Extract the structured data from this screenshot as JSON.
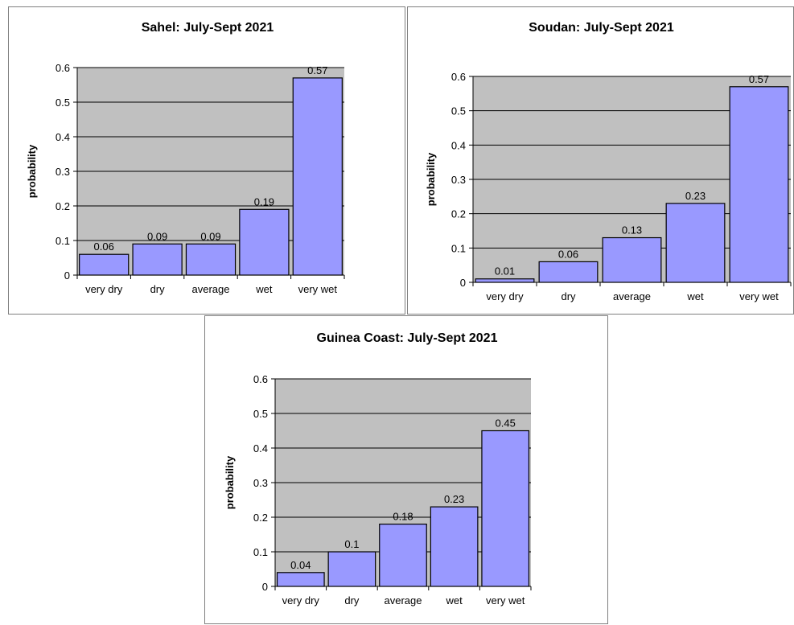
{
  "chart_data": [
    {
      "type": "bar",
      "title": "Sahel: July-Sept 2021",
      "ylabel": "probability",
      "xlabel": "",
      "categories": [
        "very dry",
        "dry",
        "average",
        "wet",
        "very wet"
      ],
      "values": [
        0.06,
        0.09,
        0.09,
        0.19,
        0.57
      ],
      "data_labels": [
        "0.06",
        "0.09",
        "0.09",
        "0.19",
        "0.57"
      ],
      "ylim": [
        0,
        0.6
      ],
      "yticks": [
        "0",
        "0.1",
        "0.2",
        "0.3",
        "0.4",
        "0.5",
        "0.6"
      ],
      "grid": true,
      "legend": "none"
    },
    {
      "type": "bar",
      "title": "Soudan: July-Sept 2021",
      "ylabel": "probability",
      "xlabel": "",
      "categories": [
        "very dry",
        "dry",
        "average",
        "wet",
        "very wet"
      ],
      "values": [
        0.01,
        0.06,
        0.13,
        0.23,
        0.57
      ],
      "data_labels": [
        "0.01",
        "0.06",
        "0.13",
        "0.23",
        "0.57"
      ],
      "ylim": [
        0,
        0.6
      ],
      "yticks": [
        "0",
        "0.1",
        "0.2",
        "0.3",
        "0.4",
        "0.5",
        "0.6"
      ],
      "grid": true,
      "legend": "none"
    },
    {
      "type": "bar",
      "title": "Guinea Coast: July-Sept 2021",
      "ylabel": "probability",
      "xlabel": "",
      "categories": [
        "very dry",
        "dry",
        "average",
        "wet",
        "very wet"
      ],
      "values": [
        0.04,
        0.1,
        0.18,
        0.23,
        0.45
      ],
      "data_labels": [
        "0.04",
        "0.1",
        "0.18",
        "0.23",
        "0.45"
      ],
      "ylim": [
        0,
        0.6
      ],
      "yticks": [
        "0",
        "0.1",
        "0.2",
        "0.3",
        "0.4",
        "0.5",
        "0.6"
      ],
      "grid": true,
      "legend": "none"
    }
  ],
  "colors": {
    "bar_fill": "#9999ff",
    "bar_stroke": "#000000",
    "plot_background": "#c0c0c0",
    "gridline": "#000000"
  }
}
